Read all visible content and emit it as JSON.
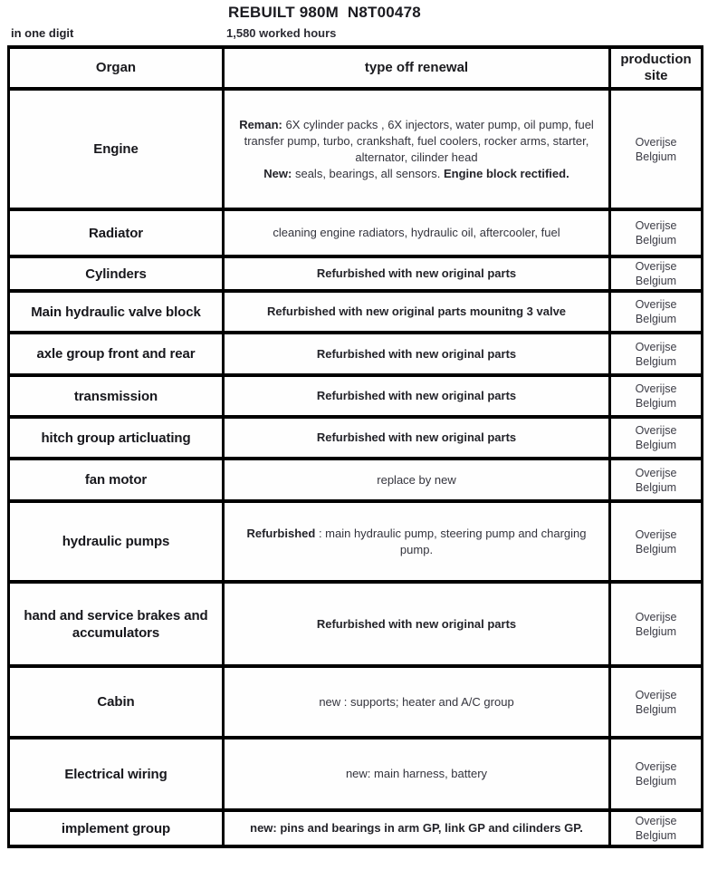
{
  "header": {
    "title": "REBUILT 980M  N8T00478",
    "left_note": "in one digit",
    "hours": "1,580 worked hours"
  },
  "table": {
    "headers": [
      "Organ",
      "type off renewal",
      "production site"
    ],
    "rows": [
      {
        "organ": "Engine",
        "renewal": [
          [
            {
              "text": "Reman:",
              "bold": true
            },
            {
              "text": " 6X cylinder packs , 6X injectors, water pump, oil pump, fuel transfer pump, turbo, crankshaft, fuel coolers, rocker arms, starter, alternator, cilinder head",
              "bold": false
            }
          ],
          [
            {
              "text": "New:",
              "bold": true
            },
            {
              "text": " seals, bearings, all sensors. ",
              "bold": false
            },
            {
              "text": "Engine block rectified.",
              "bold": true
            }
          ]
        ],
        "site": [
          "Overijse",
          "Belgium"
        ]
      },
      {
        "organ": "Radiator",
        "renewal": [
          [
            {
              "text": "cleaning engine radiators, hydraulic oil, aftercooler, fuel",
              "bold": false
            }
          ]
        ],
        "site": [
          "Overijse",
          "Belgium"
        ]
      },
      {
        "organ": "Cylinders",
        "renewal": [
          [
            {
              "text": "Refurbished with new original parts",
              "bold": true
            }
          ]
        ],
        "site": [
          "Overijse",
          "Belgium"
        ]
      },
      {
        "organ": "Main hydraulic valve block",
        "renewal": [
          [
            {
              "text": "Refurbished with new original parts mounitng 3 valve",
              "bold": true
            }
          ]
        ],
        "site": [
          "Overijse",
          "Belgium"
        ]
      },
      {
        "organ": "axle group front and rear",
        "renewal": [
          [
            {
              "text": "Refurbished with new original parts",
              "bold": true
            }
          ]
        ],
        "site": [
          "Overijse",
          "Belgium"
        ]
      },
      {
        "organ": "transmission",
        "renewal": [
          [
            {
              "text": "Refurbished with new original parts",
              "bold": true
            }
          ]
        ],
        "site": [
          "Overijse",
          "Belgium"
        ]
      },
      {
        "organ": "hitch group articluating",
        "renewal": [
          [
            {
              "text": "Refurbished with new original parts",
              "bold": true
            }
          ]
        ],
        "site": [
          "Overijse",
          "Belgium"
        ]
      },
      {
        "organ": "fan motor",
        "renewal": [
          [
            {
              "text": "replace by new",
              "bold": false
            }
          ]
        ],
        "site": [
          "Overijse",
          "Belgium"
        ]
      },
      {
        "organ": "hydraulic pumps",
        "renewal": [
          [
            {
              "text": "Refurbished",
              "bold": true
            },
            {
              "text": " : main hydraulic pump, steering pump and charging pump.",
              "bold": false
            }
          ]
        ],
        "site": [
          "Overijse",
          "Belgium"
        ]
      },
      {
        "organ": "hand and service brakes and accumulators",
        "renewal": [
          [
            {
              "text": "Refurbished with new original parts",
              "bold": true
            }
          ]
        ],
        "site": [
          "Overijse",
          "Belgium"
        ]
      },
      {
        "organ": "Cabin",
        "renewal": [
          [
            {
              "text": "new : supports; heater and A/C group",
              "bold": false
            }
          ]
        ],
        "site": [
          "Overijse",
          "Belgium"
        ]
      },
      {
        "organ": "Electrical wiring",
        "renewal": [
          [
            {
              "text": "new: main harness, battery",
              "bold": false
            }
          ]
        ],
        "site": [
          "Overijse",
          "Belgium"
        ]
      },
      {
        "organ": "implement group",
        "renewal": [
          [
            {
              "text": "new: pins and bearings in arm GP, link GP and cilinders GP.",
              "bold": true
            }
          ]
        ],
        "site": [
          "Overijse",
          "Belgium"
        ]
      }
    ]
  }
}
